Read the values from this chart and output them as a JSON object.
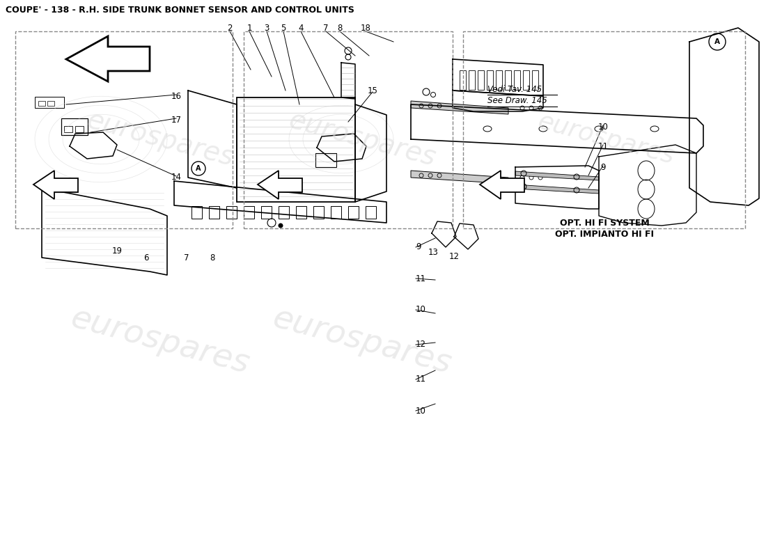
{
  "title": "COUPE' - 138 - R.H. SIDE TRUNK BONNET SENSOR AND CONTROL UNITS",
  "bg_color": "#ffffff",
  "line_color": "#000000",
  "title_fontsize": 9,
  "label_fontsize": 8.5,
  "top_labels": [
    [
      "2",
      330,
      760
    ],
    [
      "1",
      358,
      760
    ],
    [
      "3",
      383,
      760
    ],
    [
      "5",
      407,
      760
    ],
    [
      "4",
      432,
      760
    ],
    [
      "7",
      468,
      760
    ],
    [
      "8",
      488,
      760
    ],
    [
      "18",
      525,
      760
    ]
  ],
  "right_labels": [
    [
      "9",
      597,
      445
    ],
    [
      "11",
      597,
      400
    ],
    [
      "10",
      597,
      355
    ],
    [
      "12",
      597,
      305
    ],
    [
      "11",
      597,
      255
    ],
    [
      "10",
      597,
      210
    ]
  ],
  "bot_left_labels": [
    [
      "19",
      168,
      440
    ],
    [
      "6",
      210,
      430
    ],
    [
      "7",
      268,
      430
    ],
    [
      "8",
      305,
      430
    ]
  ],
  "panel3_labels": [
    [
      "9",
      866,
      560
    ],
    [
      "11",
      866,
      590
    ],
    [
      "10",
      866,
      618
    ]
  ],
  "panel3_note1": "Vedi Tav. 145",
  "panel3_note2": "See Draw. 145",
  "panel3_opt1": "OPT. IMPIANTO HI FI",
  "panel3_opt2": "OPT. HI FI SYSTEM",
  "watermark": "eurospares"
}
